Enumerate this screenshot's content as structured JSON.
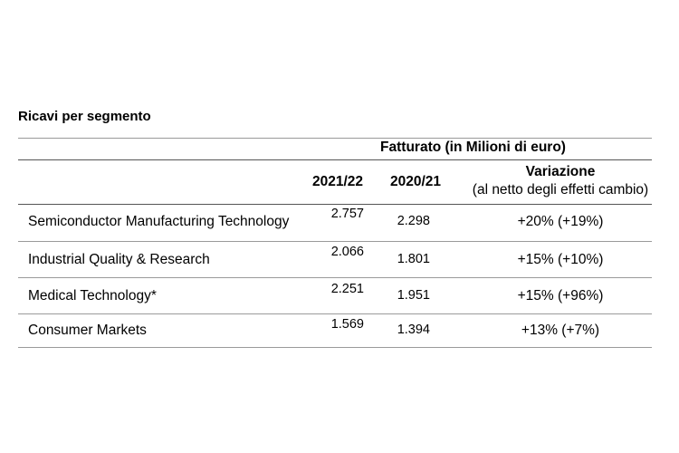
{
  "section_title": "Ricavi per segmento",
  "table": {
    "group_header": "Fatturato (in Milioni di euro)",
    "columns": {
      "year_current": "2021/22",
      "year_previous": "2020/21",
      "change": "Variazione",
      "change_note": "(al netto degli effetti cambio)"
    },
    "rows": [
      {
        "segment": "Semiconductor Manufacturing Technology",
        "current": "2.757",
        "previous": "2.298",
        "change": "+20% (+19%)"
      },
      {
        "segment": "Industrial Quality & Research",
        "current": "2.066",
        "previous": "1.801",
        "change": "+15% (+10%)"
      },
      {
        "segment": "Medical Technology*",
        "current": "2.251",
        "previous": "1.951",
        "change": "+15% (+96%)"
      },
      {
        "segment": "Consumer Markets",
        "current": "1.569",
        "previous": "1.394",
        "change": "+13% (+7%)"
      }
    ]
  }
}
